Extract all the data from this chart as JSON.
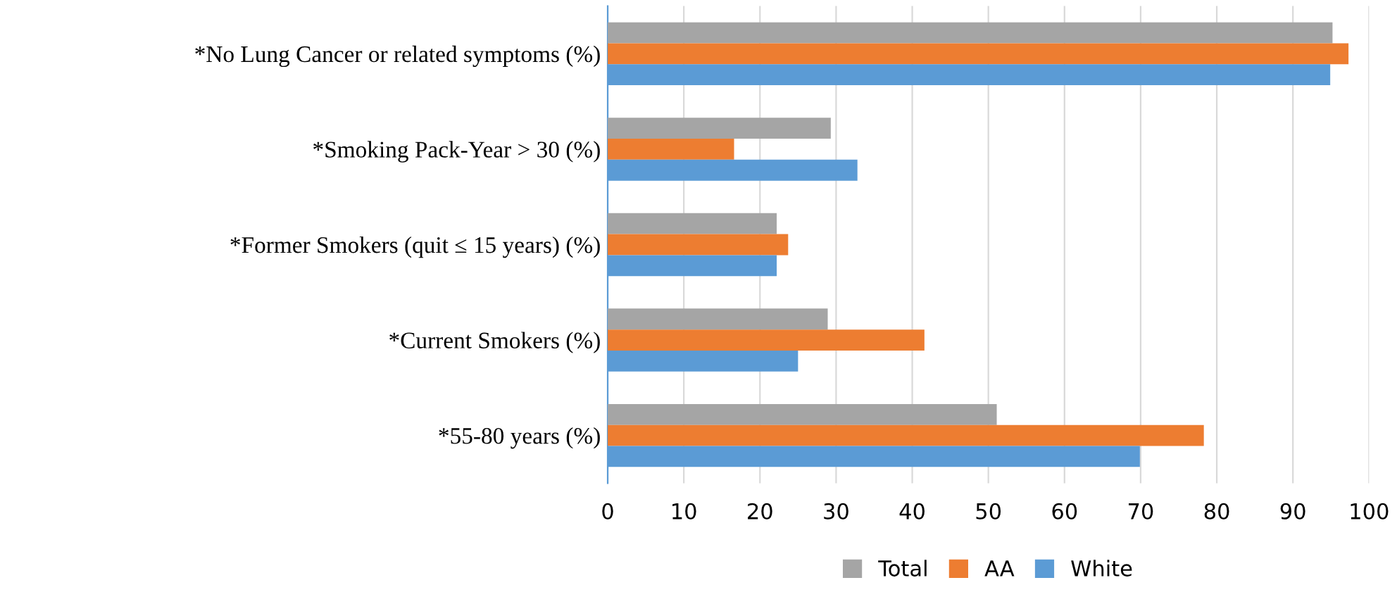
{
  "chart_data": {
    "type": "bar",
    "orientation": "horizontal",
    "categories": [
      "*No Lung Cancer or related symptoms (%)",
      "*Smoking Pack-Year > 30 (%)",
      "*Former Smokers (quit ≤ 15 years) (%)",
      "*Current Smokers (%)",
      "*55-80 years (%)"
    ],
    "series": [
      {
        "name": "Total",
        "color": "#a5a5a5",
        "values": [
          95.2,
          29.3,
          22.2,
          28.9,
          51.1
        ]
      },
      {
        "name": "AA",
        "color": "#ed7d31",
        "values": [
          97.3,
          16.6,
          23.7,
          41.6,
          78.3
        ]
      },
      {
        "name": "White",
        "color": "#5b9bd5",
        "values": [
          94.9,
          32.8,
          22.2,
          25.0,
          69.9
        ]
      }
    ],
    "xlim": [
      0,
      100
    ],
    "xticks": [
      0,
      10,
      20,
      30,
      40,
      50,
      60,
      70,
      80,
      90,
      100
    ],
    "grid": "x",
    "legend": "bottom"
  }
}
